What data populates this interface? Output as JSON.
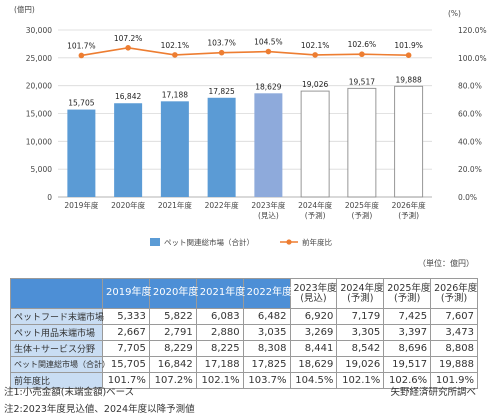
{
  "chart_data": {
    "type": "bar+line",
    "categories": [
      "2019年度",
      "2020年度",
      "2021年度",
      "2022年度",
      "2023年度",
      "2024年度",
      "2025年度",
      "2026年度"
    ],
    "category_sublabels": [
      "",
      "",
      "",
      "",
      "(見込)",
      "(予測)",
      "(予測)",
      "(予測)"
    ],
    "series": [
      {
        "name": "ペット関連総市場（合計）",
        "type": "bar",
        "values": [
          15705,
          16842,
          17188,
          17825,
          18629,
          19026,
          19517,
          19888
        ],
        "value_labels": [
          "15,705",
          "16,842",
          "17,188",
          "17,825",
          "18,629",
          "19,026",
          "19,517",
          "19,888"
        ],
        "styles": [
          "actual",
          "actual",
          "actual",
          "actual",
          "estimate",
          "forecast",
          "forecast",
          "forecast"
        ]
      },
      {
        "name": "前年度比",
        "type": "line",
        "axis": "right",
        "values": [
          101.7,
          107.2,
          102.1,
          103.7,
          104.5,
          102.1,
          102.6,
          101.9
        ],
        "value_labels": [
          "101.7%",
          "107.2%",
          "102.1%",
          "103.7%",
          "104.5%",
          "102.1%",
          "102.6%",
          "101.9%"
        ]
      }
    ],
    "y_left": {
      "unit": "(億円)",
      "ylim": [
        0,
        30000
      ],
      "ticks": [
        "0",
        "5,000",
        "10,000",
        "15,000",
        "20,000",
        "25,000",
        "30,000"
      ]
    },
    "y_right": {
      "unit": "(%)",
      "ylim": [
        0,
        120
      ],
      "ticks": [
        "0.0%",
        "20.0%",
        "40.0%",
        "60.0%",
        "80.0%",
        "100.0%",
        "120.0%"
      ]
    },
    "unit_note": "（単位：億円）",
    "colors": {
      "actual": "#5b9bd5",
      "estimate": "#8eaadb",
      "forecast": "#ffffff",
      "line": "#ed7d31",
      "grid": "#d9d9d9"
    }
  },
  "table": {
    "headers": [
      {
        "line1": "2019年度",
        "line2": "",
        "forecast": false
      },
      {
        "line1": "2020年度",
        "line2": "",
        "forecast": false
      },
      {
        "line1": "2021年度",
        "line2": "",
        "forecast": false
      },
      {
        "line1": "2022年度",
        "line2": "",
        "forecast": false
      },
      {
        "line1": "2023年度",
        "line2": "(見込)",
        "forecast": true
      },
      {
        "line1": "2024年度",
        "line2": "(予測)",
        "forecast": true
      },
      {
        "line1": "2025年度",
        "line2": "(予測)",
        "forecast": true
      },
      {
        "line1": "2026年度",
        "line2": "(予測)",
        "forecast": true
      }
    ],
    "rows": [
      {
        "label": "ペットフード末端市場",
        "cells": [
          "5,333",
          "5,822",
          "6,083",
          "6,482",
          "6,920",
          "7,179",
          "7,425",
          "7,607"
        ]
      },
      {
        "label": "ペット用品末端市場",
        "cells": [
          "2,667",
          "2,791",
          "2,880",
          "3,035",
          "3,269",
          "3,305",
          "3,397",
          "3,473"
        ]
      },
      {
        "label": "生体＋サービス分野",
        "cells": [
          "7,705",
          "8,229",
          "8,225",
          "8,308",
          "8,441",
          "8,542",
          "8,696",
          "8,808"
        ]
      },
      {
        "label": "ペット関連総市場（合計）",
        "cells": [
          "15,705",
          "16,842",
          "17,188",
          "17,825",
          "18,629",
          "19,026",
          "19,517",
          "19,888"
        ],
        "sum": true
      },
      {
        "label": "前年度比",
        "cells": [
          "101.7%",
          "107.2%",
          "102.1%",
          "103.7%",
          "104.5%",
          "102.1%",
          "102.6%",
          "101.9%"
        ],
        "growth": true
      }
    ]
  },
  "notes": {
    "note1": "注1:小売金額(末端金額)ベース",
    "note2": "注2:2023年度見込値、2024年度以降予測値",
    "source": "矢野経済研究所調べ"
  }
}
